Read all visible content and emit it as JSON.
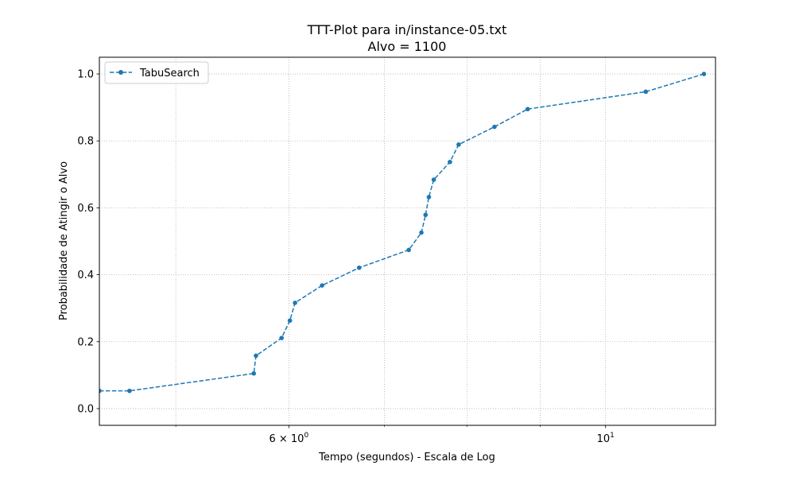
{
  "chart_data": {
    "type": "line",
    "title": "TTT-Plot para in/instance-05.txt",
    "subtitle": "Alvo = 1100",
    "xlabel": "Tempo (segundos) - Escala de Log",
    "ylabel": "Probabilidade de Atingir o Alvo",
    "xscale": "log",
    "xlim": [
      4.42,
      11.94
    ],
    "ylim": [
      -0.05,
      1.05
    ],
    "grid": true,
    "legend_position": "top-left",
    "x_tick_labels": [
      {
        "value": 6,
        "base": "6",
        "times": "×",
        "power_base": "10",
        "exponent": "0"
      },
      {
        "value": 10,
        "base": "",
        "times": "",
        "power_base": "10",
        "exponent": "1"
      }
    ],
    "x_minor_ticks": [
      5,
      7,
      8,
      9
    ],
    "y_ticks": [
      0.0,
      0.2,
      0.4,
      0.6,
      0.8,
      1.0
    ],
    "y_tick_labels": [
      "0.0",
      "0.2",
      "0.4",
      "0.6",
      "0.8",
      "1.0"
    ],
    "series": [
      {
        "name": "TabuSearch",
        "color": "#1f77b4",
        "linestyle": "dashed",
        "marker": "circle",
        "x": [
          4.42,
          4.64,
          5.67,
          5.69,
          5.93,
          6.01,
          6.06,
          6.33,
          6.72,
          7.28,
          7.43,
          7.48,
          7.52,
          7.58,
          7.78,
          7.89,
          8.36,
          8.82,
          10.67,
          11.72
        ],
        "y": [
          0.053,
          0.053,
          0.105,
          0.158,
          0.211,
          0.263,
          0.316,
          0.368,
          0.421,
          0.474,
          0.526,
          0.579,
          0.632,
          0.684,
          0.737,
          0.789,
          0.842,
          0.895,
          0.947,
          1.0
        ]
      }
    ]
  }
}
